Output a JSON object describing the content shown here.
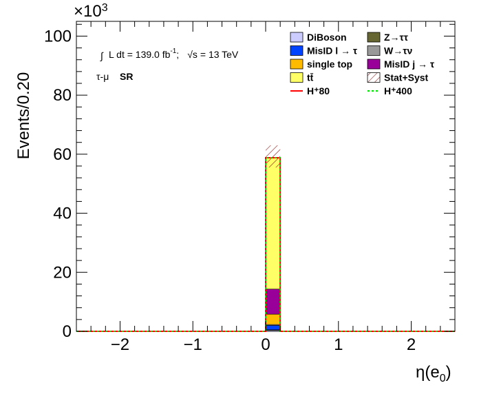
{
  "chart_data": {
    "type": "bar",
    "stacked": true,
    "bin_width": 0.2,
    "xlim": [
      -2.6,
      2.6
    ],
    "ylim": [
      0,
      105
    ],
    "y_multiplier_label": "×10",
    "y_multiplier_exp": "3",
    "xlabel": "η(e",
    "xlabel_sub": "0",
    "xlabel_close": ")",
    "ylabel": "Events/0.20",
    "x_ticks": [
      -2,
      -1,
      0,
      1,
      2
    ],
    "x_tick_labels": [
      "−2",
      "−1",
      "0",
      "1",
      "2"
    ],
    "y_ticks": [
      0,
      20,
      40,
      60,
      80,
      100
    ],
    "y_tick_labels": [
      "0",
      "20",
      "40",
      "60",
      "80",
      "100"
    ],
    "bin": [
      0.0,
      0.2
    ],
    "series": [
      {
        "name": "DiBoson",
        "value": 0.3,
        "color": "#ccccff"
      },
      {
        "name": "Z→ττ",
        "value": 0.2,
        "color": "#666633"
      },
      {
        "name": "MisID l → τ",
        "value": 1.5,
        "color": "#0044ff"
      },
      {
        "name": "W→τν",
        "value": 0.3,
        "color": "#999999"
      },
      {
        "name": "single top",
        "value": 3.5,
        "color": "#ffbb00"
      },
      {
        "name": "MisID j → τ",
        "value": 8.5,
        "color": "#990099"
      },
      {
        "name": "tt̄",
        "value": 44.5,
        "color": "#ffff66"
      }
    ],
    "stack_total": 58.8,
    "uncertainty": {
      "name": "Stat+Syst",
      "low": 55.5,
      "high": 63.0
    },
    "signals": [
      {
        "name": "H⁺80",
        "color": "#ff0000",
        "style": "solid"
      },
      {
        "name": "H⁺400",
        "color": "#00dd00",
        "style": "dashed"
      }
    ],
    "legend_placement": "top-right",
    "grid": false
  },
  "annotation": {
    "lumi_prefix": "∫",
    "lumi_text": "L dt = 139.0 fb",
    "lumi_sup": "-1",
    "lumi_sep": ";",
    "sqrt_s": "√s",
    "energy": "= 13 TeV",
    "region_channel": "τ-μ",
    "region_name": "SR"
  }
}
